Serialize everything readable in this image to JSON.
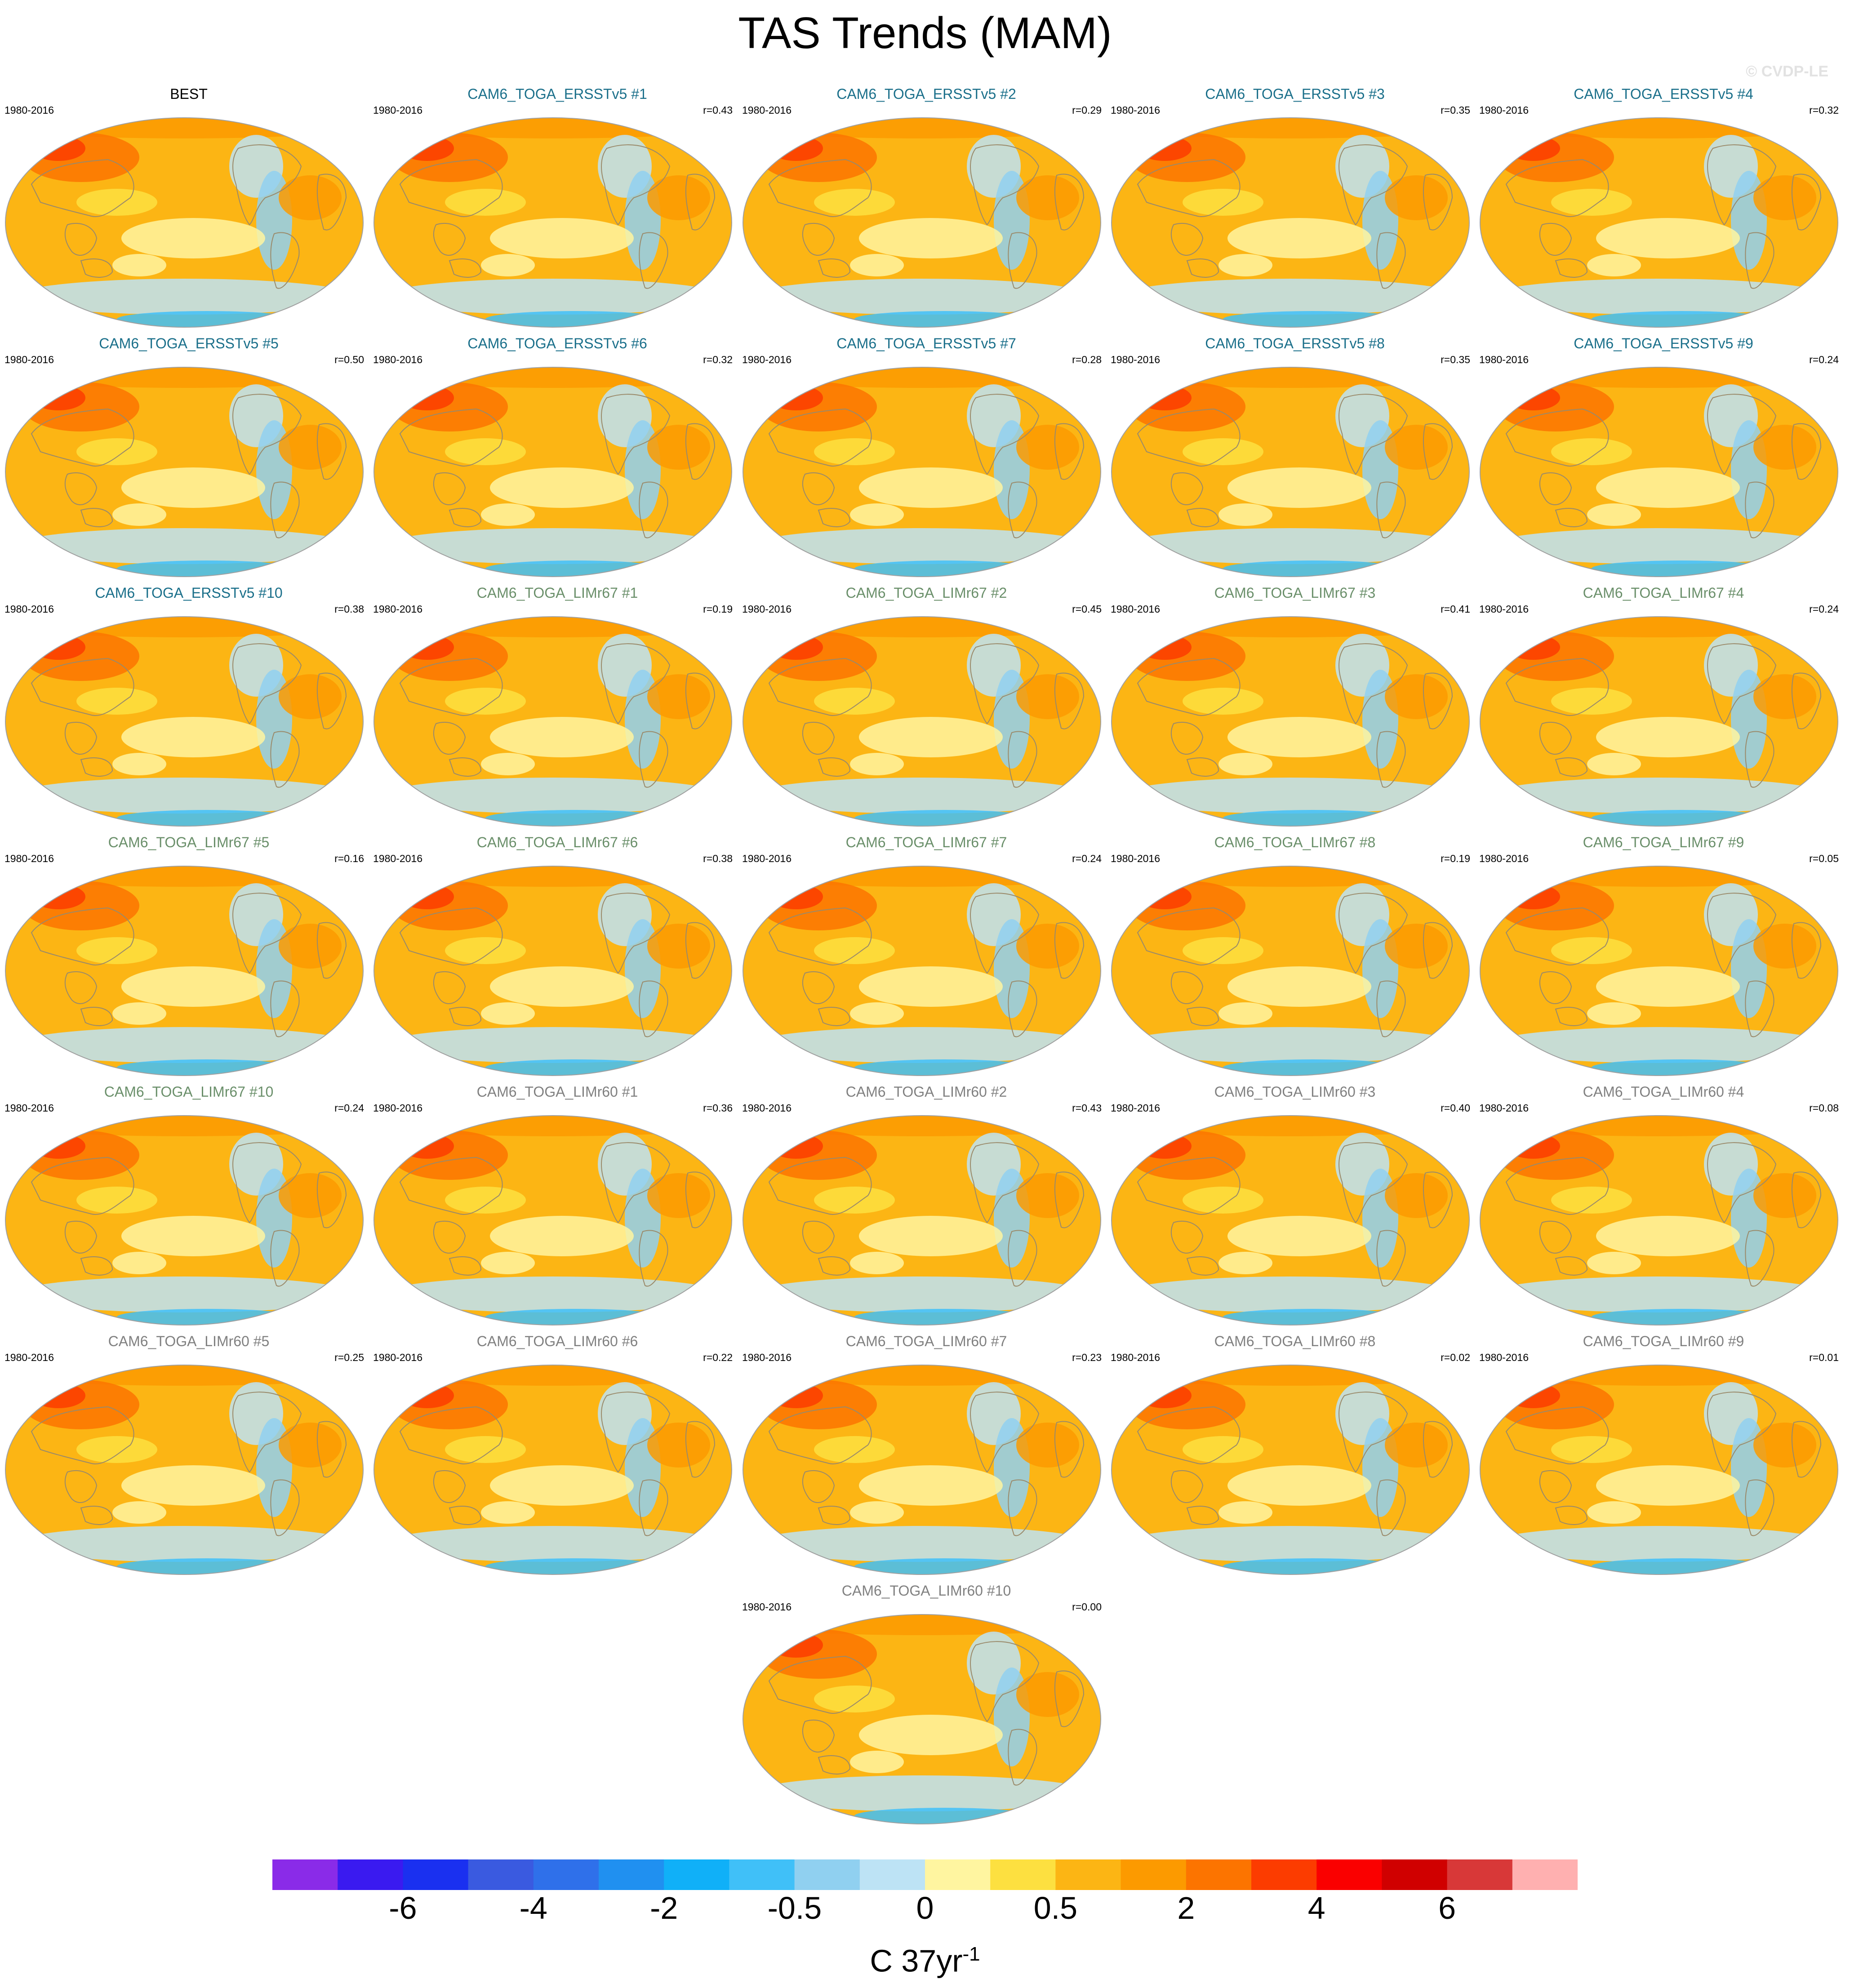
{
  "figure": {
    "title": "TAS Trends (MAM)",
    "watermark": "© CVDP-LE",
    "units_main": "C 37yr",
    "units_sup": "-1"
  },
  "colors": {
    "ocean_fill": "#fcb514",
    "coast": "#9a8a6a"
  },
  "panels": [
    {
      "title": "BEST",
      "title_color": "#000000",
      "period": "1980-2016",
      "r": ""
    },
    {
      "title": "CAM6_TOGA_ERSSTv5 #1",
      "title_color": "#1a6f8a",
      "period": "1980-2016",
      "r": "r=0.43"
    },
    {
      "title": "CAM6_TOGA_ERSSTv5 #2",
      "title_color": "#1a6f8a",
      "period": "1980-2016",
      "r": "r=0.29"
    },
    {
      "title": "CAM6_TOGA_ERSSTv5 #3",
      "title_color": "#1a6f8a",
      "period": "1980-2016",
      "r": "r=0.35"
    },
    {
      "title": "CAM6_TOGA_ERSSTv5 #4",
      "title_color": "#1a6f8a",
      "period": "1980-2016",
      "r": "r=0.32"
    },
    {
      "title": "CAM6_TOGA_ERSSTv5 #5",
      "title_color": "#1a6f8a",
      "period": "1980-2016",
      "r": "r=0.50"
    },
    {
      "title": "CAM6_TOGA_ERSSTv5 #6",
      "title_color": "#1a6f8a",
      "period": "1980-2016",
      "r": "r=0.32"
    },
    {
      "title": "CAM6_TOGA_ERSSTv5 #7",
      "title_color": "#1a6f8a",
      "period": "1980-2016",
      "r": "r=0.28"
    },
    {
      "title": "CAM6_TOGA_ERSSTv5 #8",
      "title_color": "#1a6f8a",
      "period": "1980-2016",
      "r": "r=0.35"
    },
    {
      "title": "CAM6_TOGA_ERSSTv5 #9",
      "title_color": "#1a6f8a",
      "period": "1980-2016",
      "r": "r=0.24"
    },
    {
      "title": "CAM6_TOGA_ERSSTv5 #10",
      "title_color": "#1a6f8a",
      "period": "1980-2016",
      "r": "r=0.38"
    },
    {
      "title": "CAM6_TOGA_LIMr67 #1",
      "title_color": "#6a8f6a",
      "period": "1980-2016",
      "r": "r=0.19"
    },
    {
      "title": "CAM6_TOGA_LIMr67 #2",
      "title_color": "#6a8f6a",
      "period": "1980-2016",
      "r": "r=0.45"
    },
    {
      "title": "CAM6_TOGA_LIMr67 #3",
      "title_color": "#6a8f6a",
      "period": "1980-2016",
      "r": "r=0.41"
    },
    {
      "title": "CAM6_TOGA_LIMr67 #4",
      "title_color": "#6a8f6a",
      "period": "1980-2016",
      "r": "r=0.24"
    },
    {
      "title": "CAM6_TOGA_LIMr67 #5",
      "title_color": "#6a8f6a",
      "period": "1980-2016",
      "r": "r=0.16"
    },
    {
      "title": "CAM6_TOGA_LIMr67 #6",
      "title_color": "#6a8f6a",
      "period": "1980-2016",
      "r": "r=0.38"
    },
    {
      "title": "CAM6_TOGA_LIMr67 #7",
      "title_color": "#6a8f6a",
      "period": "1980-2016",
      "r": "r=0.24"
    },
    {
      "title": "CAM6_TOGA_LIMr67 #8",
      "title_color": "#6a8f6a",
      "period": "1980-2016",
      "r": "r=0.19"
    },
    {
      "title": "CAM6_TOGA_LIMr67 #9",
      "title_color": "#6a8f6a",
      "period": "1980-2016",
      "r": "r=0.05"
    },
    {
      "title": "CAM6_TOGA_LIMr67 #10",
      "title_color": "#6a8f6a",
      "period": "1980-2016",
      "r": "r=0.24"
    },
    {
      "title": "CAM6_TOGA_LIMr60 #1",
      "title_color": "#808080",
      "period": "1980-2016",
      "r": "r=0.36"
    },
    {
      "title": "CAM6_TOGA_LIMr60 #2",
      "title_color": "#808080",
      "period": "1980-2016",
      "r": "r=0.43"
    },
    {
      "title": "CAM6_TOGA_LIMr60 #3",
      "title_color": "#808080",
      "period": "1980-2016",
      "r": "r=0.40"
    },
    {
      "title": "CAM6_TOGA_LIMr60 #4",
      "title_color": "#808080",
      "period": "1980-2016",
      "r": "r=0.08"
    },
    {
      "title": "CAM6_TOGA_LIMr60 #5",
      "title_color": "#808080",
      "period": "1980-2016",
      "r": "r=0.25"
    },
    {
      "title": "CAM6_TOGA_LIMr60 #6",
      "title_color": "#808080",
      "period": "1980-2016",
      "r": "r=0.22"
    },
    {
      "title": "CAM6_TOGA_LIMr60 #7",
      "title_color": "#808080",
      "period": "1980-2016",
      "r": "r=0.23"
    },
    {
      "title": "CAM6_TOGA_LIMr60 #8",
      "title_color": "#808080",
      "period": "1980-2016",
      "r": "r=0.02"
    },
    {
      "title": "CAM6_TOGA_LIMr60 #9",
      "title_color": "#808080",
      "period": "1980-2016",
      "r": "r=0.01"
    },
    {
      "title": "CAM6_TOGA_LIMr60 #10",
      "title_color": "#808080",
      "period": "1980-2016",
      "r": "r=0.00"
    }
  ],
  "colorbar": {
    "colors": [
      "#8a2be8",
      "#3a1af0",
      "#1a30f0",
      "#3a5ae0",
      "#2f70ea",
      "#2090f0",
      "#10b0f8",
      "#40c0f8",
      "#90d0f0",
      "#bde3f5",
      "#fff5a0",
      "#fde040",
      "#fcb514",
      "#fc9a00",
      "#fc7400",
      "#fc3c00",
      "#fa0000",
      "#d00000",
      "#d83838",
      "#ffb0b0"
    ],
    "labels": [
      "-6",
      "-4",
      "-2",
      "-0.5",
      "0",
      "0.5",
      "2",
      "4",
      "6"
    ]
  }
}
